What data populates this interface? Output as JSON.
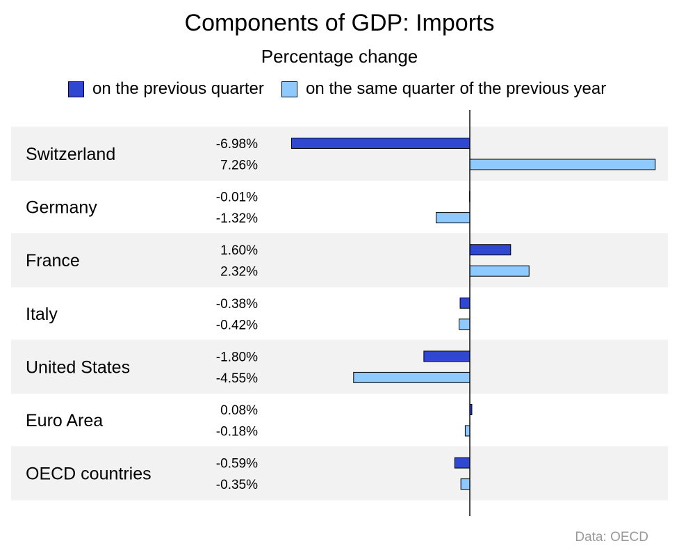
{
  "chart_data": {
    "type": "bar",
    "orientation": "horizontal",
    "title": "Components of GDP: Imports",
    "subtitle": "Percentage change",
    "categories": [
      "Switzerland",
      "Germany",
      "France",
      "Italy",
      "United States",
      "Euro Area",
      "OECD countries"
    ],
    "series": [
      {
        "name": "on the previous quarter",
        "color": "#3047d2",
        "values": [
          -6.98,
          -0.01,
          1.6,
          -0.38,
          -1.8,
          0.08,
          -0.59
        ],
        "labels": [
          "-6.98%",
          "-0.01%",
          "1.60%",
          "-0.38%",
          "-1.80%",
          "0.08%",
          "-0.59%"
        ]
      },
      {
        "name": "on the same quarter of the previous year",
        "color": "#8fcaff",
        "values": [
          7.26,
          -1.32,
          2.32,
          -0.42,
          -4.55,
          -0.18,
          -0.35
        ],
        "labels": [
          "7.26%",
          "-1.32%",
          "2.32%",
          "-0.42%",
          "-4.55%",
          "-0.18%",
          "-0.35%"
        ]
      }
    ],
    "xlim": [
      -7.0,
      7.3
    ],
    "legend_position": "top",
    "grid": false,
    "source": "Data: OECD"
  }
}
